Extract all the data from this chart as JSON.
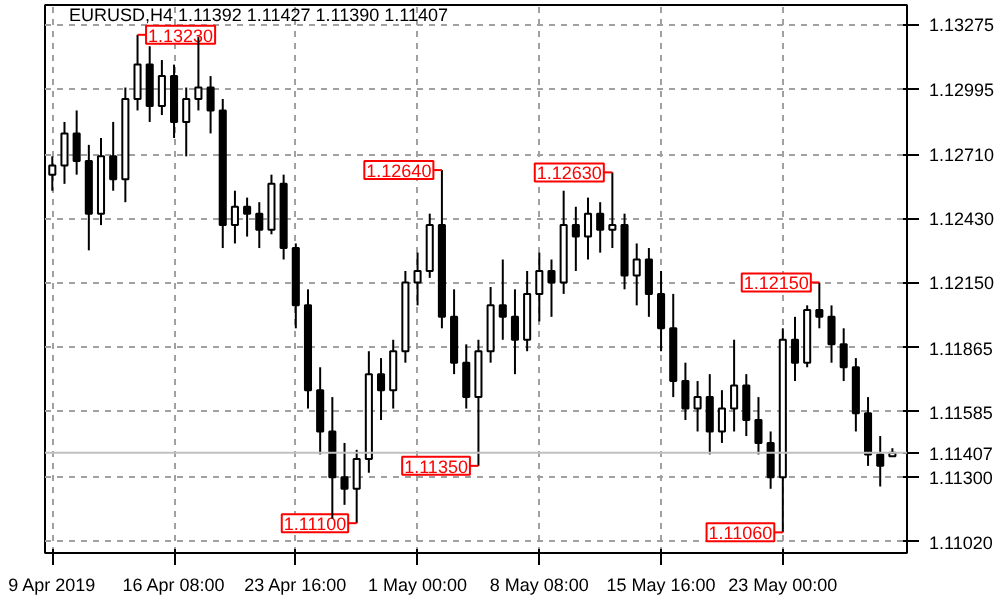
{
  "chart_data": {
    "type": "candlestick",
    "title": "EURUSD,H4 1.11392 1.11427 1.11390 1.11407",
    "color": "#000000",
    "categories": [
      "9 Apr 2019",
      null,
      null,
      null,
      null,
      null,
      null,
      null,
      null,
      null,
      "16 Apr 08:00",
      null,
      null,
      null,
      null,
      null,
      null,
      null,
      null,
      null,
      "23 Apr 16:00",
      null,
      null,
      null,
      null,
      null,
      null,
      null,
      null,
      null,
      "1 May 00:00",
      null,
      null,
      null,
      null,
      null,
      null,
      null,
      null,
      null,
      "8 May 08:00",
      null,
      null,
      null,
      null,
      null,
      null,
      null,
      null,
      null,
      "15 May 16:00",
      null,
      null,
      null,
      null,
      null,
      null,
      null,
      null,
      null,
      "23 May 00:00",
      null,
      null,
      null,
      null,
      null,
      null,
      null,
      null,
      null
    ],
    "ohlc": [
      [
        1.1262,
        1.127,
        1.1255,
        1.1266
      ],
      [
        1.1266,
        1.1285,
        1.1258,
        1.128
      ],
      [
        1.128,
        1.129,
        1.1262,
        1.1268
      ],
      [
        1.1268,
        1.1275,
        1.1229,
        1.1245
      ],
      [
        1.1245,
        1.1278,
        1.124,
        1.127
      ],
      [
        1.127,
        1.1285,
        1.1255,
        1.126
      ],
      [
        1.126,
        1.13,
        1.125,
        1.1295
      ],
      [
        1.1295,
        1.1323,
        1.129,
        1.131
      ],
      [
        1.131,
        1.1318,
        1.1285,
        1.1292
      ],
      [
        1.1292,
        1.1312,
        1.1288,
        1.1305
      ],
      [
        1.1305,
        1.131,
        1.1278,
        1.1285
      ],
      [
        1.1285,
        1.13,
        1.127,
        1.1295
      ],
      [
        1.1295,
        1.1322,
        1.129,
        1.13
      ],
      [
        1.13,
        1.1305,
        1.128,
        1.129
      ],
      [
        1.129,
        1.1295,
        1.123,
        1.124
      ],
      [
        1.124,
        1.1255,
        1.1232,
        1.1248
      ],
      [
        1.1248,
        1.1252,
        1.1235,
        1.1245
      ],
      [
        1.1245,
        1.125,
        1.123,
        1.1238
      ],
      [
        1.1238,
        1.1262,
        1.1236,
        1.1258
      ],
      [
        1.1258,
        1.1262,
        1.1225,
        1.123
      ],
      [
        1.123,
        1.1232,
        1.1195,
        1.1205
      ],
      [
        1.1205,
        1.1212,
        1.116,
        1.1168
      ],
      [
        1.1168,
        1.1178,
        1.114,
        1.115
      ],
      [
        1.115,
        1.1165,
        1.1112,
        1.113
      ],
      [
        1.113,
        1.1145,
        1.1118,
        1.1125
      ],
      [
        1.1125,
        1.1142,
        1.111,
        1.1138
      ],
      [
        1.1138,
        1.1185,
        1.1132,
        1.1175
      ],
      [
        1.1175,
        1.1182,
        1.1155,
        1.1168
      ],
      [
        1.1168,
        1.119,
        1.116,
        1.1185
      ],
      [
        1.1185,
        1.122,
        1.118,
        1.1215
      ],
      [
        1.1215,
        1.1228,
        1.1205,
        1.122
      ],
      [
        1.122,
        1.1245,
        1.1217,
        1.124
      ],
      [
        1.124,
        1.1264,
        1.1195,
        1.12
      ],
      [
        1.12,
        1.1212,
        1.1175,
        1.118
      ],
      [
        1.118,
        1.1188,
        1.116,
        1.1165
      ],
      [
        1.1165,
        1.119,
        1.1135,
        1.1185
      ],
      [
        1.1185,
        1.1213,
        1.118,
        1.1205
      ],
      [
        1.1205,
        1.1225,
        1.119,
        1.12
      ],
      [
        1.12,
        1.1212,
        1.1175,
        1.119
      ],
      [
        1.119,
        1.122,
        1.1185,
        1.121
      ],
      [
        1.121,
        1.1228,
        1.1198,
        1.122
      ],
      [
        1.122,
        1.1225,
        1.12,
        1.1215
      ],
      [
        1.1215,
        1.1255,
        1.121,
        1.124
      ],
      [
        1.124,
        1.1248,
        1.122,
        1.1235
      ],
      [
        1.1235,
        1.1252,
        1.1225,
        1.1245
      ],
      [
        1.1245,
        1.125,
        1.1228,
        1.1238
      ],
      [
        1.1238,
        1.1263,
        1.123,
        1.124
      ],
      [
        1.124,
        1.1245,
        1.1212,
        1.1218
      ],
      [
        1.1218,
        1.1232,
        1.1205,
        1.1225
      ],
      [
        1.1225,
        1.123,
        1.12,
        1.121
      ],
      [
        1.121,
        1.122,
        1.1185,
        1.1195
      ],
      [
        1.1195,
        1.121,
        1.1165,
        1.1172
      ],
      [
        1.1172,
        1.118,
        1.1155,
        1.116
      ],
      [
        1.116,
        1.1172,
        1.115,
        1.1165
      ],
      [
        1.1165,
        1.1175,
        1.114,
        1.115
      ],
      [
        1.115,
        1.1168,
        1.1145,
        1.116
      ],
      [
        1.116,
        1.119,
        1.115,
        1.117
      ],
      [
        1.117,
        1.1175,
        1.1148,
        1.1155
      ],
      [
        1.1155,
        1.1165,
        1.114,
        1.1145
      ],
      [
        1.1145,
        1.115,
        1.1125,
        1.113
      ],
      [
        1.113,
        1.1195,
        1.1106,
        1.119
      ],
      [
        1.119,
        1.12,
        1.1172,
        1.118
      ],
      [
        1.118,
        1.1205,
        1.1178,
        1.1203
      ],
      [
        1.1203,
        1.1215,
        1.1195,
        1.12
      ],
      [
        1.12,
        1.1205,
        1.118,
        1.1188
      ],
      [
        1.1188,
        1.1195,
        1.1172,
        1.1178
      ],
      [
        1.1178,
        1.1182,
        1.115,
        1.1158
      ],
      [
        1.1158,
        1.1165,
        1.1135,
        1.114
      ],
      [
        1.114,
        1.1148,
        1.1126,
        1.1135
      ],
      [
        1.11392,
        1.11427,
        1.1139,
        1.11407
      ]
    ],
    "ylim": [
      1.1097,
      1.1336
    ],
    "yticks": [
      {
        "value": 1.1102,
        "label": "1.11020"
      },
      {
        "value": 1.113,
        "label": "1.11300"
      },
      {
        "value": 1.11585,
        "label": "1.11585"
      },
      {
        "value": 1.11865,
        "label": "1.11865"
      },
      {
        "value": 1.1215,
        "label": "1.12150"
      },
      {
        "value": 1.1243,
        "label": "1.12430"
      },
      {
        "value": 1.1271,
        "label": "1.12710"
      },
      {
        "value": 1.12995,
        "label": "1.12995"
      },
      {
        "value": 1.13275,
        "label": "1.13275"
      }
    ],
    "grid": true,
    "ref_lines": [
      {
        "axis": "y",
        "value": 1.11407,
        "label": "1.11407",
        "color": "#c0c0c0"
      }
    ],
    "annotations": [
      "1.13230",
      "1.12640",
      "1.12630",
      "1.12150",
      "1.11350",
      "1.11100",
      "1.11060"
    ]
  }
}
